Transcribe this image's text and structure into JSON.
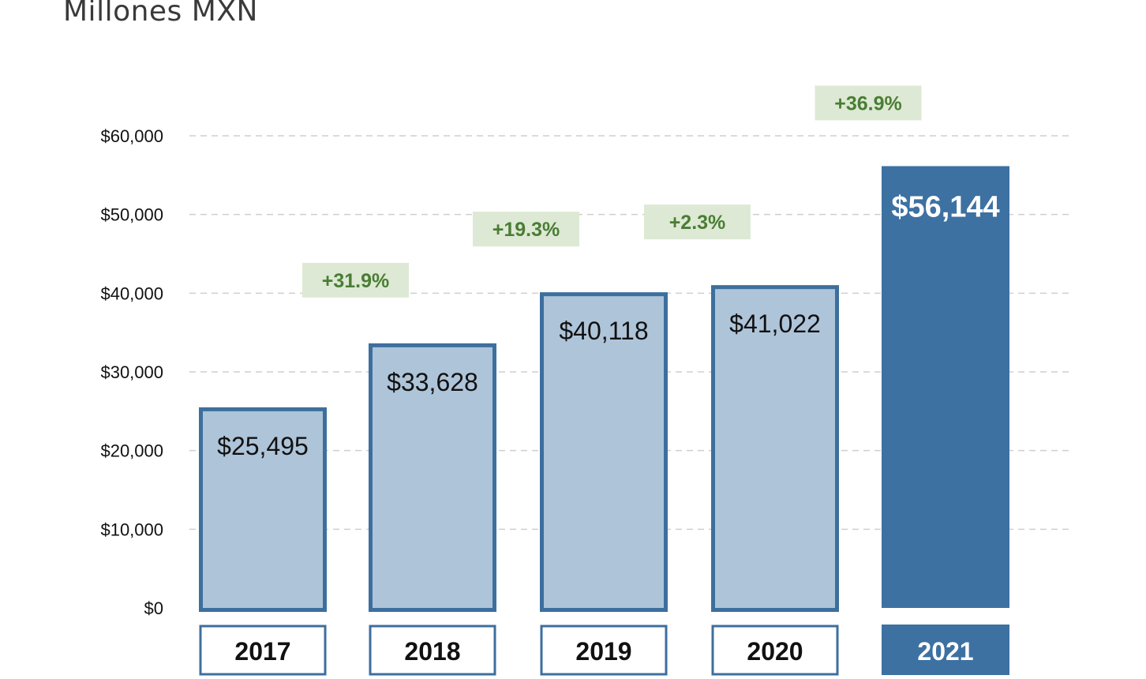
{
  "chart_data": {
    "type": "bar",
    "title": "Millones MXN",
    "categories": [
      "2017",
      "2018",
      "2019",
      "2020",
      "2021"
    ],
    "values": [
      25495,
      33628,
      40118,
      41022,
      56144
    ],
    "value_labels": [
      "$25,495",
      "$33,628",
      "$40,118",
      "$41,022",
      "$56,144"
    ],
    "growth": [
      null,
      "+31.9%",
      "+19.3%",
      "+2.3%",
      "+36.9%"
    ],
    "y_ticks": [
      0,
      10000,
      20000,
      30000,
      40000,
      50000,
      60000
    ],
    "y_tick_labels": [
      "$0",
      "$10,000",
      "$20,000",
      "$30,000",
      "$40,000",
      "$50,000",
      "$60,000"
    ],
    "ylim": [
      0,
      60000
    ],
    "grid": true,
    "highlight_index": 4,
    "colors": {
      "bar_fill": "#aec4d9",
      "bar_stroke": "#3d6f9e",
      "highlight_fill": "#3d71a1",
      "growth_bg": "#dde9d4",
      "growth_text": "#4a7d34",
      "grid": "#cfcfcf",
      "text": "#111111"
    }
  }
}
